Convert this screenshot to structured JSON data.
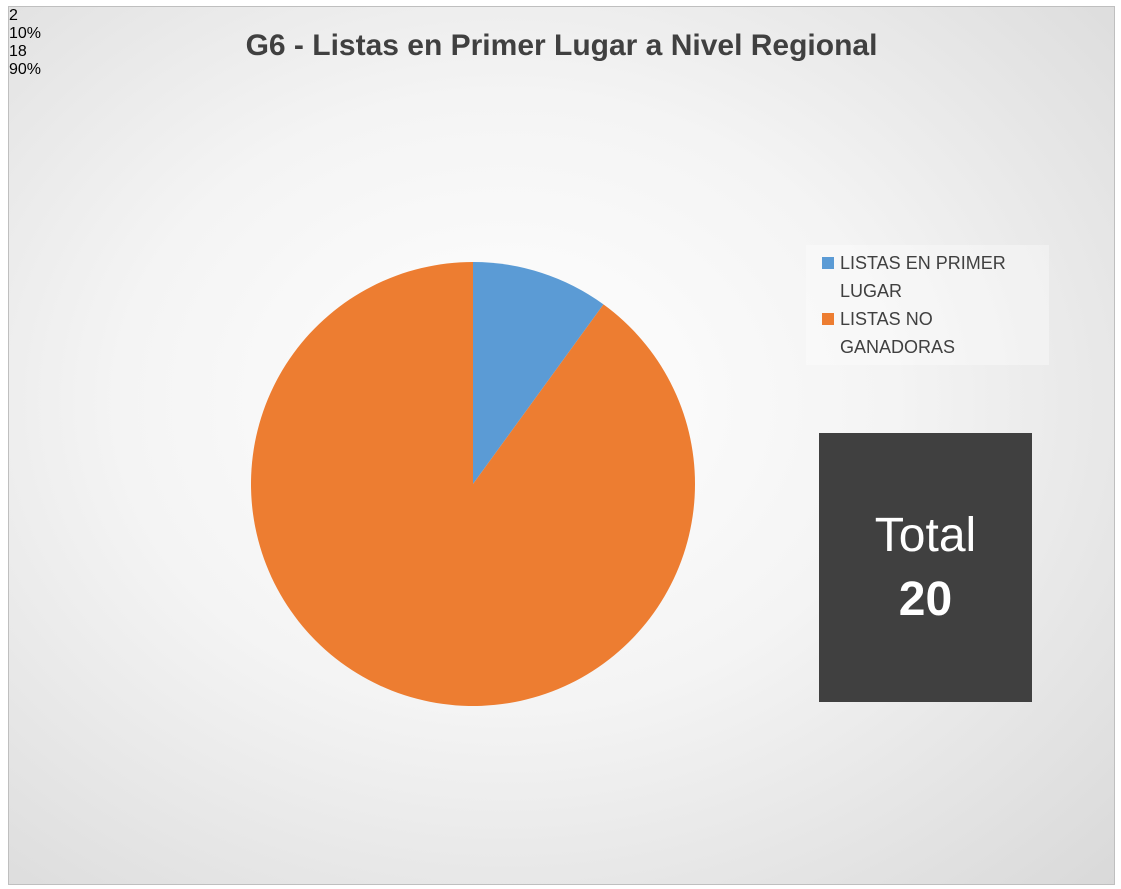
{
  "chart_data": {
    "type": "pie",
    "title": "G6 - Listas en Primer Lugar a Nivel Regional",
    "categories": [
      "LISTAS EN PRIMER LUGAR",
      "LISTAS NO GANADORAS"
    ],
    "values": [
      2,
      18
    ],
    "percent_labels": [
      "10%",
      "90%"
    ],
    "colors": [
      "#5b9bd5",
      "#ed7d31"
    ],
    "legend": "right",
    "total": {
      "label": "Total",
      "value": 20
    }
  }
}
